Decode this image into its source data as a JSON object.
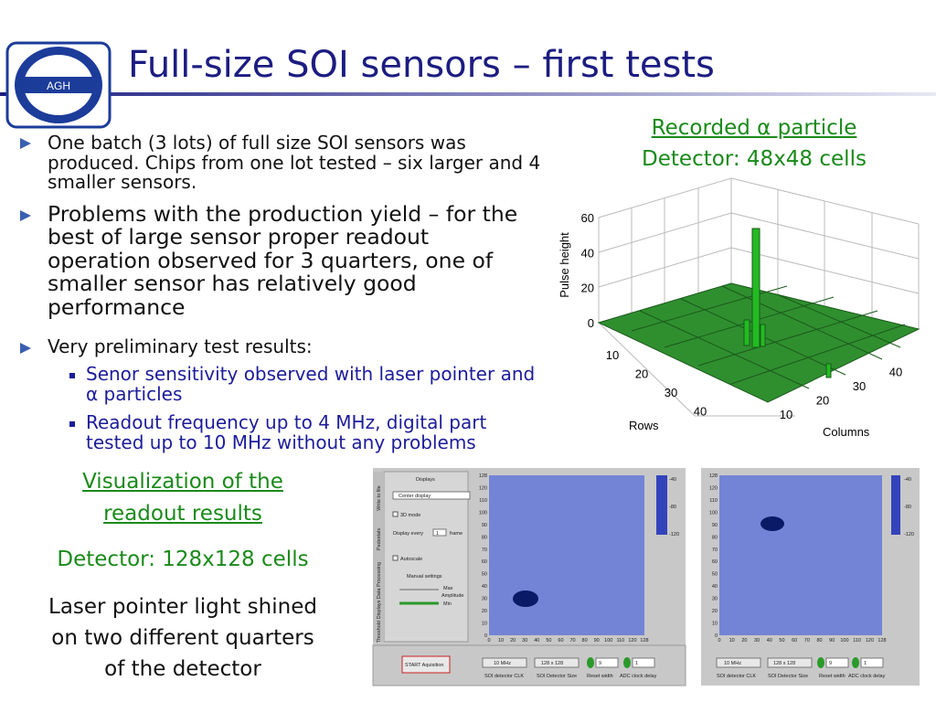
{
  "header": {
    "title": "Full-size SOI sensors – first tests",
    "logo": "AGH"
  },
  "bullets": [
    {
      "text": "One batch (3 lots) of full size SOI sensors was produced. Chips from one lot tested – six larger and 4 smaller sensors."
    },
    {
      "text": "Problems with the production yield – for the best of large sensor proper readout operation observed for 3 quarters, one of smaller sensor has relatively good performance"
    },
    {
      "text": "Very preliminary test results:",
      "sub_bullets": [
        "Senor sensitivity observed with laser pointer and α particles",
        "Readout frequency up to 4 MHz, digital part tested up to 10 MHz without any problems"
      ]
    }
  ],
  "right_caption": {
    "line1": "Recorded α particle",
    "line2": "Detector: 48x48 cells"
  },
  "plot3d": {
    "z_label": "Pulse height",
    "z_ticks": [
      "60",
      "40",
      "20",
      "0"
    ],
    "rows_label": "Rows",
    "rows_ticks": [
      "10",
      "20",
      "30",
      "40"
    ],
    "columns_label": "Columns",
    "columns_ticks": [
      "10",
      "20",
      "30",
      "40"
    ]
  },
  "left_caption": {
    "link_lines": [
      "Visualization of the",
      "readout results"
    ],
    "detector": "Detector: 128x128 cells",
    "description": [
      "Laser pointer light shined",
      "on two different quarters",
      "of the detector"
    ]
  },
  "screenshots": {
    "axis_ticks": [
      "0",
      "10",
      "20",
      "30",
      "40",
      "50",
      "60",
      "70",
      "80",
      "90",
      "100",
      "110",
      "120",
      "128"
    ],
    "colorbar_ticks": [
      "-40",
      "-80",
      "-120"
    ],
    "panel": {
      "heading": "Displays",
      "mode_select": "Center display",
      "mode_3d": "3D mode",
      "display_every": "Display every",
      "frame_count": "1",
      "frame": "frame",
      "autoscale": "Autoscale",
      "manual": "Manual settings",
      "max": "Max",
      "amplitude": "Amplitude",
      "min": "Min",
      "tabs": [
        "Write to file",
        "Pedestals",
        "Data Processing",
        "Threshold Displays"
      ]
    },
    "controls": {
      "start": "START Aquisition",
      "clk": "10 MHz",
      "size": "128 x 128",
      "reset": "9",
      "adc": "1",
      "clk_label": "SOI detector CLK",
      "size_label": "SOI Detector Size",
      "reset_label": "Reset width",
      "adc_label": "ADC clock delay"
    }
  }
}
